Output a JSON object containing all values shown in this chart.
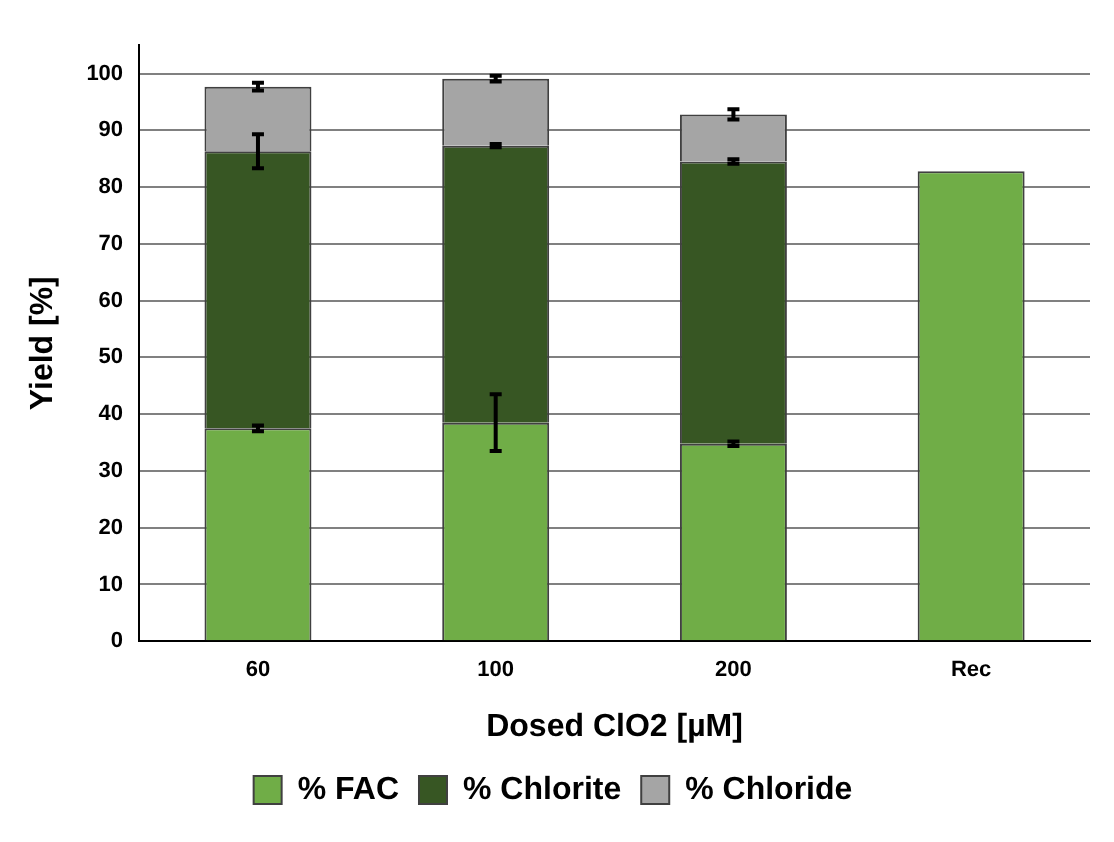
{
  "chart_data": {
    "type": "bar",
    "stacked": true,
    "xlabel": "Dosed ClO2 [µM]",
    "ylabel": "Yield [%]",
    "categories": [
      "60",
      "100",
      "200",
      "Rec"
    ],
    "series": [
      {
        "name": "% FAC",
        "color": "#70ad47",
        "values": [
          37.5,
          38.5,
          34.8,
          82.8
        ],
        "errors": [
          0.5,
          5,
          0.4,
          null
        ]
      },
      {
        "name": "% Chlorite",
        "color": "#375623",
        "values": [
          48.8,
          48.8,
          49.7,
          null
        ],
        "errors": [
          3,
          0.3,
          0.4,
          null
        ]
      },
      {
        "name": "% Chloride",
        "color": "#a5a5a5",
        "values": [
          11.4,
          11.8,
          8.3,
          null
        ],
        "errors": [
          0.7,
          0.5,
          0.9,
          null
        ]
      }
    ],
    "ylim": [
      0,
      105
    ],
    "yticks": [
      0,
      10,
      20,
      30,
      40,
      50,
      60,
      70,
      80,
      90,
      100
    ],
    "grid": "y",
    "legend": "bottom"
  }
}
